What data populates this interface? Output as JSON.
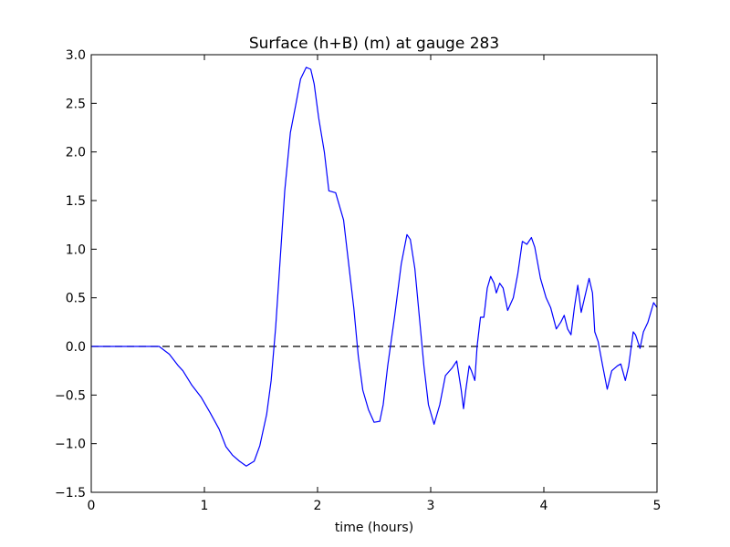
{
  "chart_data": {
    "type": "line",
    "title": "Surface (h+B) (m) at gauge 283",
    "xlabel": "time (hours)",
    "color": "#0000ff",
    "hline": {
      "y": 0,
      "color": "#000000",
      "style": "dashed"
    },
    "xlim": [
      0,
      5
    ],
    "ylim": [
      -1.5,
      3.0
    ],
    "xticks": [
      0,
      1,
      2,
      3,
      4,
      5
    ],
    "yticks": [
      {
        "value": -1.5,
        "label": "−1.5"
      },
      {
        "value": -1.0,
        "label": "−1.0"
      },
      {
        "value": -0.5,
        "label": "−0.5"
      },
      {
        "value": 0,
        "label": "0.0"
      },
      {
        "value": 0.5,
        "label": "0.5"
      },
      {
        "value": 1.0,
        "label": "1.0"
      },
      {
        "value": 1.5,
        "label": "1.5"
      },
      {
        "value": 2.0,
        "label": "2.0"
      },
      {
        "value": 2.5,
        "label": "2.5"
      },
      {
        "value": 3.0,
        "label": "3.0"
      }
    ],
    "x": [
      0,
      0.3,
      0.6,
      0.69,
      0.77,
      0.81,
      0.89,
      0.97,
      1.05,
      1.13,
      1.19,
      1.25,
      1.31,
      1.37,
      1.44,
      1.49,
      1.55,
      1.59,
      1.63,
      1.67,
      1.71,
      1.76,
      1.81,
      1.85,
      1.9,
      1.94,
      1.97,
      2.01,
      2.06,
      2.1,
      2.16,
      2.23,
      2.27,
      2.32,
      2.36,
      2.4,
      2.45,
      2.5,
      2.55,
      2.58,
      2.62,
      2.68,
      2.74,
      2.79,
      2.82,
      2.86,
      2.9,
      2.94,
      2.98,
      3.03,
      3.08,
      3.13,
      3.19,
      3.23,
      3.27,
      3.29,
      3.31,
      3.34,
      3.36,
      3.39,
      3.41,
      3.44,
      3.47,
      3.5,
      3.53,
      3.56,
      3.58,
      3.61,
      3.64,
      3.68,
      3.73,
      3.77,
      3.81,
      3.85,
      3.89,
      3.92,
      3.97,
      4.02,
      4.06,
      4.11,
      4.15,
      4.18,
      4.21,
      4.24,
      4.27,
      4.3,
      4.33,
      4.37,
      4.4,
      4.43,
      4.45,
      4.48,
      4.52,
      4.56,
      4.6,
      4.65,
      4.68,
      4.72,
      4.75,
      4.79,
      4.81,
      4.85,
      4.88,
      4.92,
      4.97,
      5.0
    ],
    "values": [
      0,
      0,
      0,
      -0.08,
      -0.2,
      -0.25,
      -0.4,
      -0.52,
      -0.68,
      -0.85,
      -1.03,
      -1.12,
      -1.18,
      -1.23,
      -1.18,
      -1.02,
      -0.7,
      -0.35,
      0.2,
      0.9,
      1.6,
      2.2,
      2.5,
      2.75,
      2.87,
      2.85,
      2.7,
      2.35,
      2.0,
      1.6,
      1.58,
      1.3,
      0.9,
      0.4,
      -0.1,
      -0.45,
      -0.65,
      -0.78,
      -0.77,
      -0.6,
      -0.2,
      0.3,
      0.85,
      1.15,
      1.1,
      0.8,
      0.3,
      -0.2,
      -0.6,
      -0.8,
      -0.6,
      -0.3,
      -0.22,
      -0.15,
      -0.45,
      -0.64,
      -0.45,
      -0.2,
      -0.25,
      -0.35,
      0.0,
      0.3,
      0.3,
      0.6,
      0.72,
      0.65,
      0.55,
      0.65,
      0.6,
      0.37,
      0.5,
      0.75,
      1.08,
      1.05,
      1.12,
      1.02,
      0.7,
      0.5,
      0.4,
      0.18,
      0.25,
      0.32,
      0.18,
      0.12,
      0.4,
      0.63,
      0.35,
      0.55,
      0.7,
      0.55,
      0.15,
      0.05,
      -0.2,
      -0.44,
      -0.25,
      -0.2,
      -0.18,
      -0.35,
      -0.2,
      0.15,
      0.12,
      -0.02,
      0.15,
      0.25,
      0.45,
      0.4
    ]
  }
}
